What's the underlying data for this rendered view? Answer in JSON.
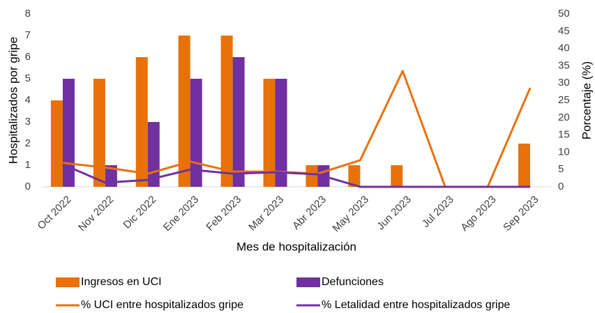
{
  "chart_data": {
    "type": "combo",
    "categories": [
      "Oct 2022",
      "Nov 2022",
      "Dic 2022",
      "Ene 2023",
      "Feb 2023",
      "Mar 2023",
      "Abr 2023",
      "May 2023",
      "Jun 2023",
      "Jul 2023",
      "Ago 2023",
      "Sep 2023"
    ],
    "x_label": "Mes de hospitalización",
    "y_label": "Hospitalizados por gripe",
    "y2_label": "Porcentaje (%)",
    "ylim": [
      0,
      8
    ],
    "yticks": [
      0,
      1,
      2,
      3,
      4,
      5,
      6,
      7,
      8
    ],
    "y2lim": [
      0,
      50
    ],
    "y2ticks": [
      0,
      5,
      10,
      15,
      20,
      25,
      30,
      35,
      40,
      45,
      50
    ],
    "grid": false,
    "series": [
      {
        "name": "Ingresos en UCI",
        "kind": "bar",
        "color": "#e8710a",
        "values": [
          4,
          5,
          6,
          7,
          7,
          5,
          1,
          1,
          1,
          0,
          0,
          2
        ]
      },
      {
        "name": "Defunciones",
        "kind": "bar",
        "color": "#7030a0",
        "values": [
          5,
          1,
          3,
          5,
          6,
          5,
          1,
          0,
          0,
          0,
          0,
          0
        ]
      },
      {
        "name": "% UCI entre hospitalizados gripe",
        "kind": "line",
        "axis": "y2",
        "color": "#e8710a",
        "values": [
          6.9,
          5.6,
          3.8,
          7.3,
          4.4,
          4.4,
          3.8,
          7.7,
          33.5,
          0,
          0,
          28.6
        ]
      },
      {
        "name": "% Letalidad entre hospitalizados gripe",
        "kind": "line",
        "axis": "y2",
        "color": "#7030a0",
        "values": [
          6.5,
          1.2,
          2.0,
          5.0,
          3.8,
          4.2,
          3.6,
          0,
          0,
          0,
          0,
          0
        ]
      }
    ]
  }
}
